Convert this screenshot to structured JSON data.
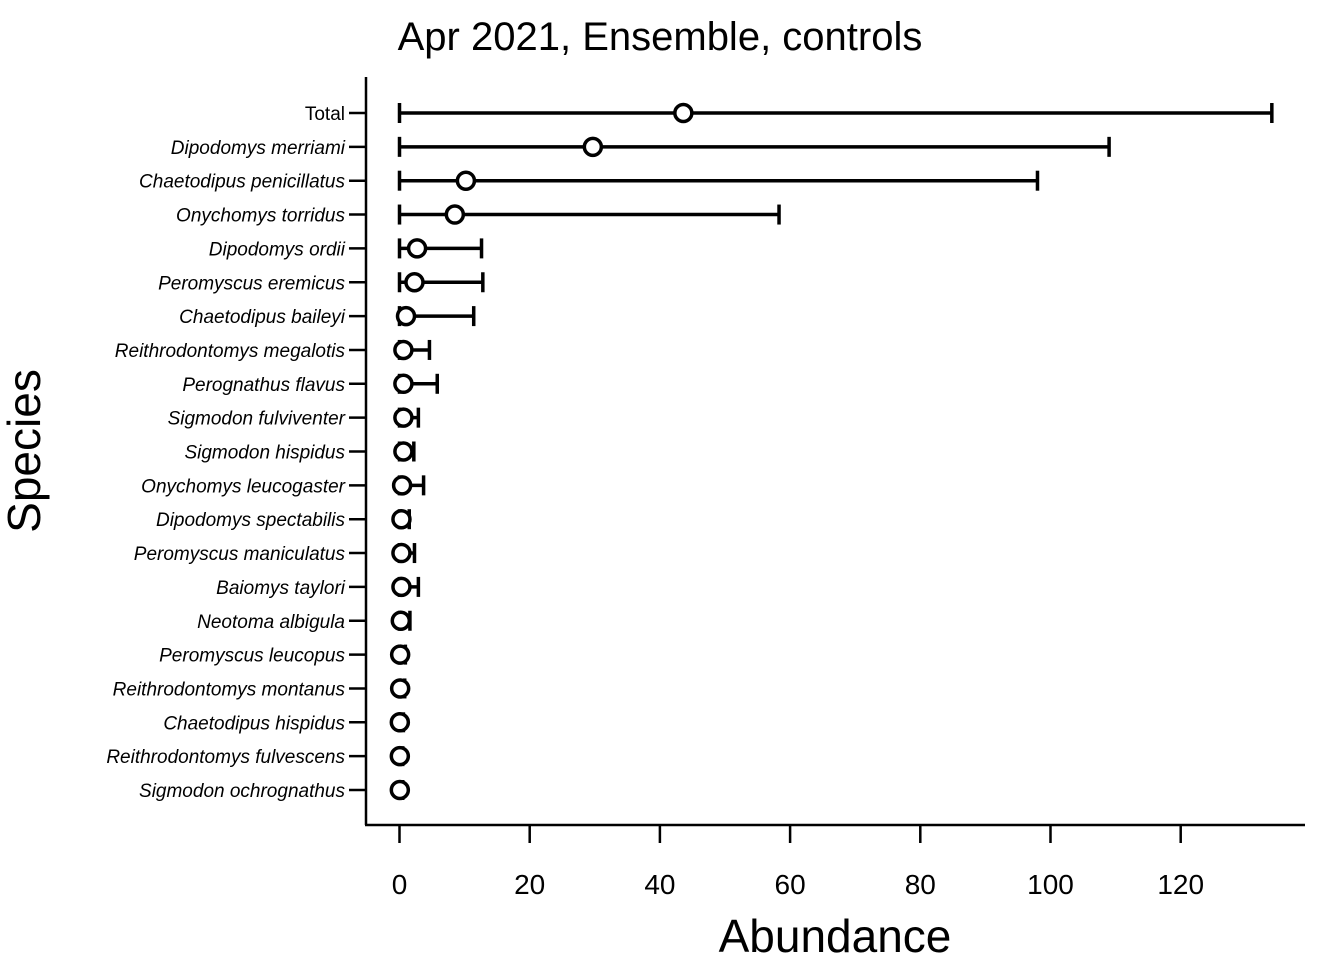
{
  "chart_data": {
    "type": "scatter",
    "title": "Apr 2021, Ensemble, controls",
    "xlabel": "Abundance",
    "ylabel": "Species",
    "xlim": [
      -5,
      138
    ],
    "xticks": [
      0,
      20,
      40,
      60,
      80,
      100,
      120
    ],
    "grid": false,
    "legend": "none",
    "categories": [
      "Total",
      "Dipodomys merriami",
      "Chaetodipus penicillatus",
      "Onychomys torridus",
      "Dipodomys ordii",
      "Peromyscus eremicus",
      "Chaetodipus baileyi",
      "Reithrodontomys megalotis",
      "Perognathus flavus",
      "Sigmodon fulviventer",
      "Sigmodon hispidus",
      "Onychomys leucogaster",
      "Dipodomys spectabilis",
      "Peromyscus maniculatus",
      "Baiomys taylori",
      "Neotoma albigula",
      "Peromyscus leucopus",
      "Reithrodontomys montanus",
      "Chaetodipus hispidus",
      "Reithrodontomys fulvescens",
      "Sigmodon ochrognathus"
    ],
    "estimate": [
      43.6,
      29.7,
      10.2,
      8.5,
      2.7,
      2.3,
      1.0,
      0.6,
      0.6,
      0.6,
      0.6,
      0.4,
      0.3,
      0.3,
      0.3,
      0.2,
      0.1,
      0.1,
      0.05,
      0.05,
      0.05
    ],
    "lower": [
      0,
      0,
      0,
      0,
      0,
      0,
      0,
      0,
      0,
      0,
      0,
      0,
      0,
      0,
      0,
      0,
      0,
      0,
      0,
      0,
      0
    ],
    "upper": [
      134,
      109,
      98,
      58.3,
      12.6,
      12.8,
      11.4,
      4.6,
      5.8,
      2.9,
      2.2,
      3.7,
      1.5,
      2.3,
      2.9,
      1.6,
      0.9,
      0.8,
      0.6,
      0.5,
      0.5
    ]
  }
}
